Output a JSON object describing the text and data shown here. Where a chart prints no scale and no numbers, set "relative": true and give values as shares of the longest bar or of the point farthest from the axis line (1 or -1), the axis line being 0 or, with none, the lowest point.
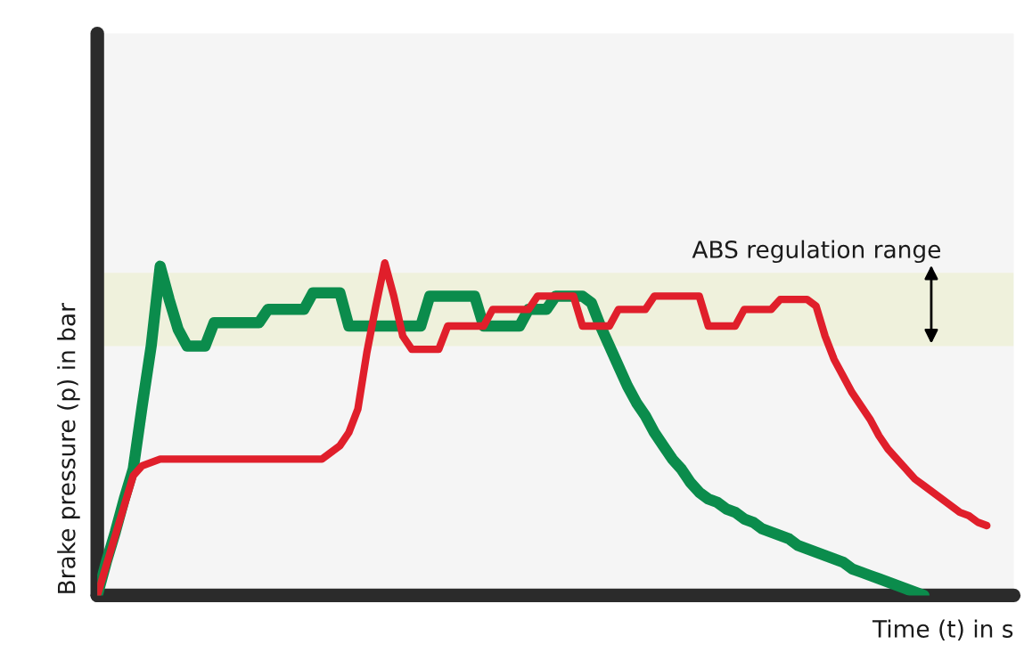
{
  "chart_data": {
    "type": "line",
    "relative": true,
    "xlabel": "Time (t) in s",
    "ylabel": "Brake pressure (p) in bar",
    "marker": "none",
    "line_style": "solid",
    "categories": [
      null,
      null,
      null,
      null,
      null,
      null,
      null,
      null,
      null,
      null,
      null,
      null,
      null,
      null,
      null,
      null,
      null,
      null,
      null,
      null,
      null,
      null,
      null,
      null,
      null,
      null,
      null,
      null,
      null,
      null,
      null,
      null,
      null,
      null,
      null,
      null,
      null,
      null,
      null,
      null,
      null,
      null,
      null,
      null,
      null,
      null,
      null,
      null,
      null,
      null,
      null,
      null,
      null,
      null,
      null,
      null,
      null,
      null,
      null,
      null,
      null,
      null,
      null,
      null,
      null,
      null,
      null,
      null,
      null,
      null,
      null,
      null,
      null,
      null,
      null,
      null,
      null,
      null,
      null,
      null,
      null,
      null,
      null,
      null,
      null,
      null,
      null,
      null,
      null,
      null,
      null,
      null,
      null,
      null,
      null,
      null,
      null,
      null,
      null,
      null,
      null
    ],
    "bands": [
      {
        "axis": "y",
        "from": 0.75,
        "to": 0.97,
        "label": "ABS regulation range",
        "color": "#eff1dc"
      }
    ],
    "series": [
      {
        "color": "#0b8c4c",
        "values": [
          0,
          0.1,
          0.19,
          0.29,
          0.38,
          0.57,
          0.75,
          0.99,
          0.89,
          0.8,
          0.75,
          0.75,
          0.75,
          0.82,
          0.82,
          0.82,
          0.82,
          0.82,
          0.82,
          0.86,
          0.86,
          0.86,
          0.86,
          0.86,
          0.91,
          0.91,
          0.91,
          0.91,
          0.81,
          0.81,
          0.81,
          0.81,
          0.81,
          0.81,
          0.81,
          0.81,
          0.81,
          0.9,
          0.9,
          0.9,
          0.9,
          0.9,
          0.9,
          0.81,
          0.81,
          0.81,
          0.81,
          0.81,
          0.86,
          0.86,
          0.86,
          0.9,
          0.9,
          0.9,
          0.9,
          0.88,
          0.81,
          0.75,
          0.69,
          0.63,
          0.58,
          0.54,
          0.49,
          0.45,
          0.41,
          0.38,
          0.34,
          0.31,
          0.29,
          0.28,
          0.26,
          0.25,
          0.23,
          0.22,
          0.2,
          0.19,
          0.18,
          0.17,
          0.15,
          0.14,
          0.13,
          0.12,
          0.11,
          0.1,
          0.08,
          0.07,
          0.06,
          0.05,
          0.04,
          0.03,
          0.02,
          0.01,
          0,
          null,
          null,
          null,
          null,
          null,
          null,
          null,
          null
        ]
      },
      {
        "color": "#e01f2b",
        "values": [
          0,
          0.09,
          0.18,
          0.27,
          0.36,
          0.39,
          0.4,
          0.41,
          0.41,
          0.41,
          0.41,
          0.41,
          0.41,
          0.41,
          0.41,
          0.41,
          0.41,
          0.41,
          0.41,
          0.41,
          0.41,
          0.41,
          0.41,
          0.41,
          0.41,
          0.41,
          0.43,
          0.45,
          0.49,
          0.56,
          0.73,
          0.87,
          1.0,
          0.9,
          0.78,
          0.74,
          0.74,
          0.74,
          0.74,
          0.81,
          0.81,
          0.81,
          0.81,
          0.81,
          0.86,
          0.86,
          0.86,
          0.86,
          0.86,
          0.9,
          0.9,
          0.9,
          0.9,
          0.9,
          0.81,
          0.81,
          0.81,
          0.81,
          0.86,
          0.86,
          0.86,
          0.86,
          0.9,
          0.9,
          0.9,
          0.9,
          0.9,
          0.9,
          0.81,
          0.81,
          0.81,
          0.81,
          0.86,
          0.86,
          0.86,
          0.86,
          0.89,
          0.89,
          0.89,
          0.89,
          0.87,
          0.78,
          0.71,
          0.66,
          0.61,
          0.57,
          0.53,
          0.48,
          0.44,
          0.41,
          0.38,
          0.35,
          0.33,
          0.31,
          0.29,
          0.27,
          0.25,
          0.24,
          0.22,
          0.21,
          null
        ]
      }
    ]
  }
}
